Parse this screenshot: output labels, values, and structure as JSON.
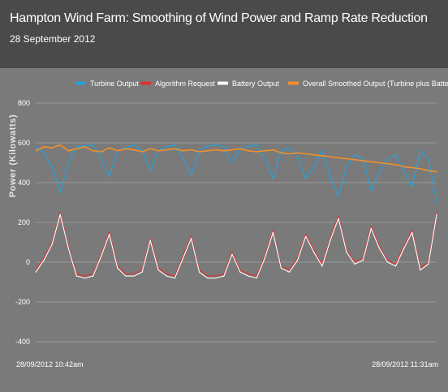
{
  "header": {
    "title": "Hampton Wind Farm: Smoothing of Wind Power and Ramp Rate Reduction",
    "subtitle": "28 September 2012"
  },
  "chart_data": {
    "type": "line",
    "ylabel": "Power (Kilowatts)",
    "ylim": [
      -400,
      800
    ],
    "yticks": [
      800,
      600,
      400,
      200,
      0,
      -200,
      -400
    ],
    "grid": "horizontal",
    "legend_placement": "top-right",
    "x_start_label": "28/09/2012 10:42am",
    "x_end_label": "28/09/2012 11:31am",
    "x_unit": "minutes",
    "series": [
      {
        "name": "Turbine Output",
        "color": "#2a9fd6",
        "x": [
          0,
          1,
          2,
          3,
          4,
          5,
          6,
          7,
          8,
          9,
          10,
          11,
          12,
          13,
          14,
          15,
          16,
          17,
          18,
          19,
          20,
          21,
          22,
          23,
          24,
          25,
          26,
          27,
          28,
          29,
          30,
          31,
          32,
          33,
          34,
          35,
          36,
          37,
          38,
          39,
          40,
          41,
          42,
          43,
          44,
          45,
          46,
          47,
          48,
          49
        ],
        "values": [
          580,
          550,
          480,
          350,
          500,
          580,
          585,
          590,
          520,
          430,
          560,
          575,
          590,
          560,
          460,
          560,
          580,
          590,
          520,
          440,
          560,
          585,
          590,
          580,
          500,
          570,
          585,
          590,
          520,
          420,
          560,
          575,
          530,
          420,
          480,
          560,
          430,
          330,
          480,
          540,
          520,
          360,
          450,
          520,
          540,
          460,
          380,
          560,
          520,
          300
        ]
      },
      {
        "name": "Algorithm Request",
        "color": "#e03030",
        "x": [
          0,
          1,
          2,
          3,
          4,
          5,
          6,
          7,
          8,
          9,
          10,
          11,
          12,
          13,
          14,
          15,
          16,
          17,
          18,
          19,
          20,
          21,
          22,
          23,
          24,
          25,
          26,
          27,
          28,
          29,
          30,
          31,
          32,
          33,
          34,
          35,
          36,
          37,
          38,
          39,
          40,
          41,
          42,
          43,
          44,
          45,
          46,
          47,
          48,
          49
        ],
        "values": [
          -40,
          20,
          100,
          250,
          80,
          -60,
          -70,
          -60,
          40,
          150,
          -20,
          -60,
          -60,
          -40,
          120,
          -30,
          -60,
          -70,
          30,
          130,
          -40,
          -70,
          -70,
          -60,
          50,
          -40,
          -60,
          -70,
          30,
          160,
          -20,
          -40,
          20,
          140,
          60,
          -10,
          120,
          230,
          60,
          0,
          20,
          180,
          80,
          10,
          -10,
          80,
          160,
          -30,
          0,
          250
        ]
      },
      {
        "name": "Battery Output",
        "color": "#ffffff",
        "x": [
          0,
          1,
          2,
          3,
          4,
          5,
          6,
          7,
          8,
          9,
          10,
          11,
          12,
          13,
          14,
          15,
          16,
          17,
          18,
          19,
          20,
          21,
          22,
          23,
          24,
          25,
          26,
          27,
          28,
          29,
          30,
          31,
          32,
          33,
          34,
          35,
          36,
          37,
          38,
          39,
          40,
          41,
          42,
          43,
          44,
          45,
          46,
          47,
          48,
          49
        ],
        "values": [
          -50,
          10,
          90,
          240,
          70,
          -70,
          -80,
          -70,
          30,
          140,
          -30,
          -70,
          -70,
          -50,
          110,
          -40,
          -70,
          -80,
          20,
          120,
          -50,
          -80,
          -80,
          -70,
          40,
          -50,
          -70,
          -80,
          20,
          150,
          -30,
          -50,
          10,
          130,
          50,
          -20,
          110,
          220,
          50,
          -10,
          10,
          170,
          70,
          0,
          -20,
          70,
          150,
          -40,
          -10,
          240
        ]
      },
      {
        "name": "Overall Smoothed Output (Turbine plus Batteries)",
        "color": "#f0902a",
        "x": [
          0,
          1,
          2,
          3,
          4,
          5,
          6,
          7,
          8,
          9,
          10,
          11,
          12,
          13,
          14,
          15,
          16,
          17,
          18,
          19,
          20,
          21,
          22,
          23,
          24,
          25,
          26,
          27,
          28,
          29,
          30,
          31,
          32,
          33,
          34,
          35,
          36,
          37,
          38,
          39,
          40,
          41,
          42,
          43,
          44,
          45,
          46,
          47,
          48,
          49
        ],
        "values": [
          560,
          580,
          575,
          590,
          560,
          570,
          580,
          560,
          555,
          575,
          560,
          570,
          565,
          555,
          570,
          560,
          565,
          570,
          560,
          565,
          555,
          560,
          565,
          560,
          565,
          570,
          560,
          555,
          560,
          565,
          550,
          545,
          550,
          545,
          540,
          535,
          530,
          525,
          520,
          515,
          510,
          505,
          500,
          495,
          490,
          480,
          475,
          470,
          460,
          455
        ]
      }
    ]
  }
}
